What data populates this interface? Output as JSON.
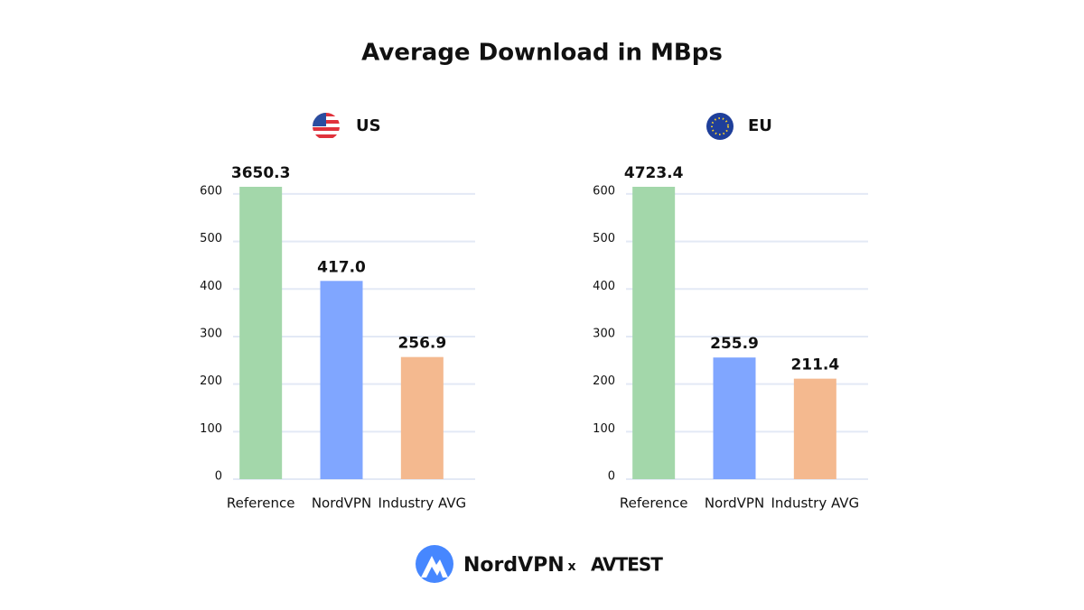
{
  "title": "Average Download in MBps",
  "chart_data": [
    {
      "type": "bar",
      "title": "US",
      "categories": [
        "Reference",
        "NordVPN",
        "Industry AVG"
      ],
      "values": [
        3650.3,
        417.0,
        256.9
      ],
      "value_labels": [
        "3650.3",
        "417.0",
        "256.9"
      ],
      "colors": [
        "#a3d7aa",
        "#80a6ff",
        "#f4b98f"
      ],
      "ylim": [
        0,
        615
      ],
      "yticks": [
        0,
        100,
        200,
        300,
        400,
        500,
        600
      ],
      "grid": true
    },
    {
      "type": "bar",
      "title": "EU",
      "categories": [
        "Reference",
        "NordVPN",
        "Industry AVG"
      ],
      "values": [
        4723.4,
        255.9,
        211.4
      ],
      "value_labels": [
        "4723.4",
        "255.9",
        "211.4"
      ],
      "colors": [
        "#a3d7aa",
        "#80a6ff",
        "#f4b98f"
      ],
      "ylim": [
        0,
        615
      ],
      "yticks": [
        0,
        100,
        200,
        300,
        400,
        500,
        600
      ],
      "grid": true
    }
  ],
  "footer": {
    "brand": "NordVPN",
    "separator": "x",
    "partner": "AVTEST"
  }
}
